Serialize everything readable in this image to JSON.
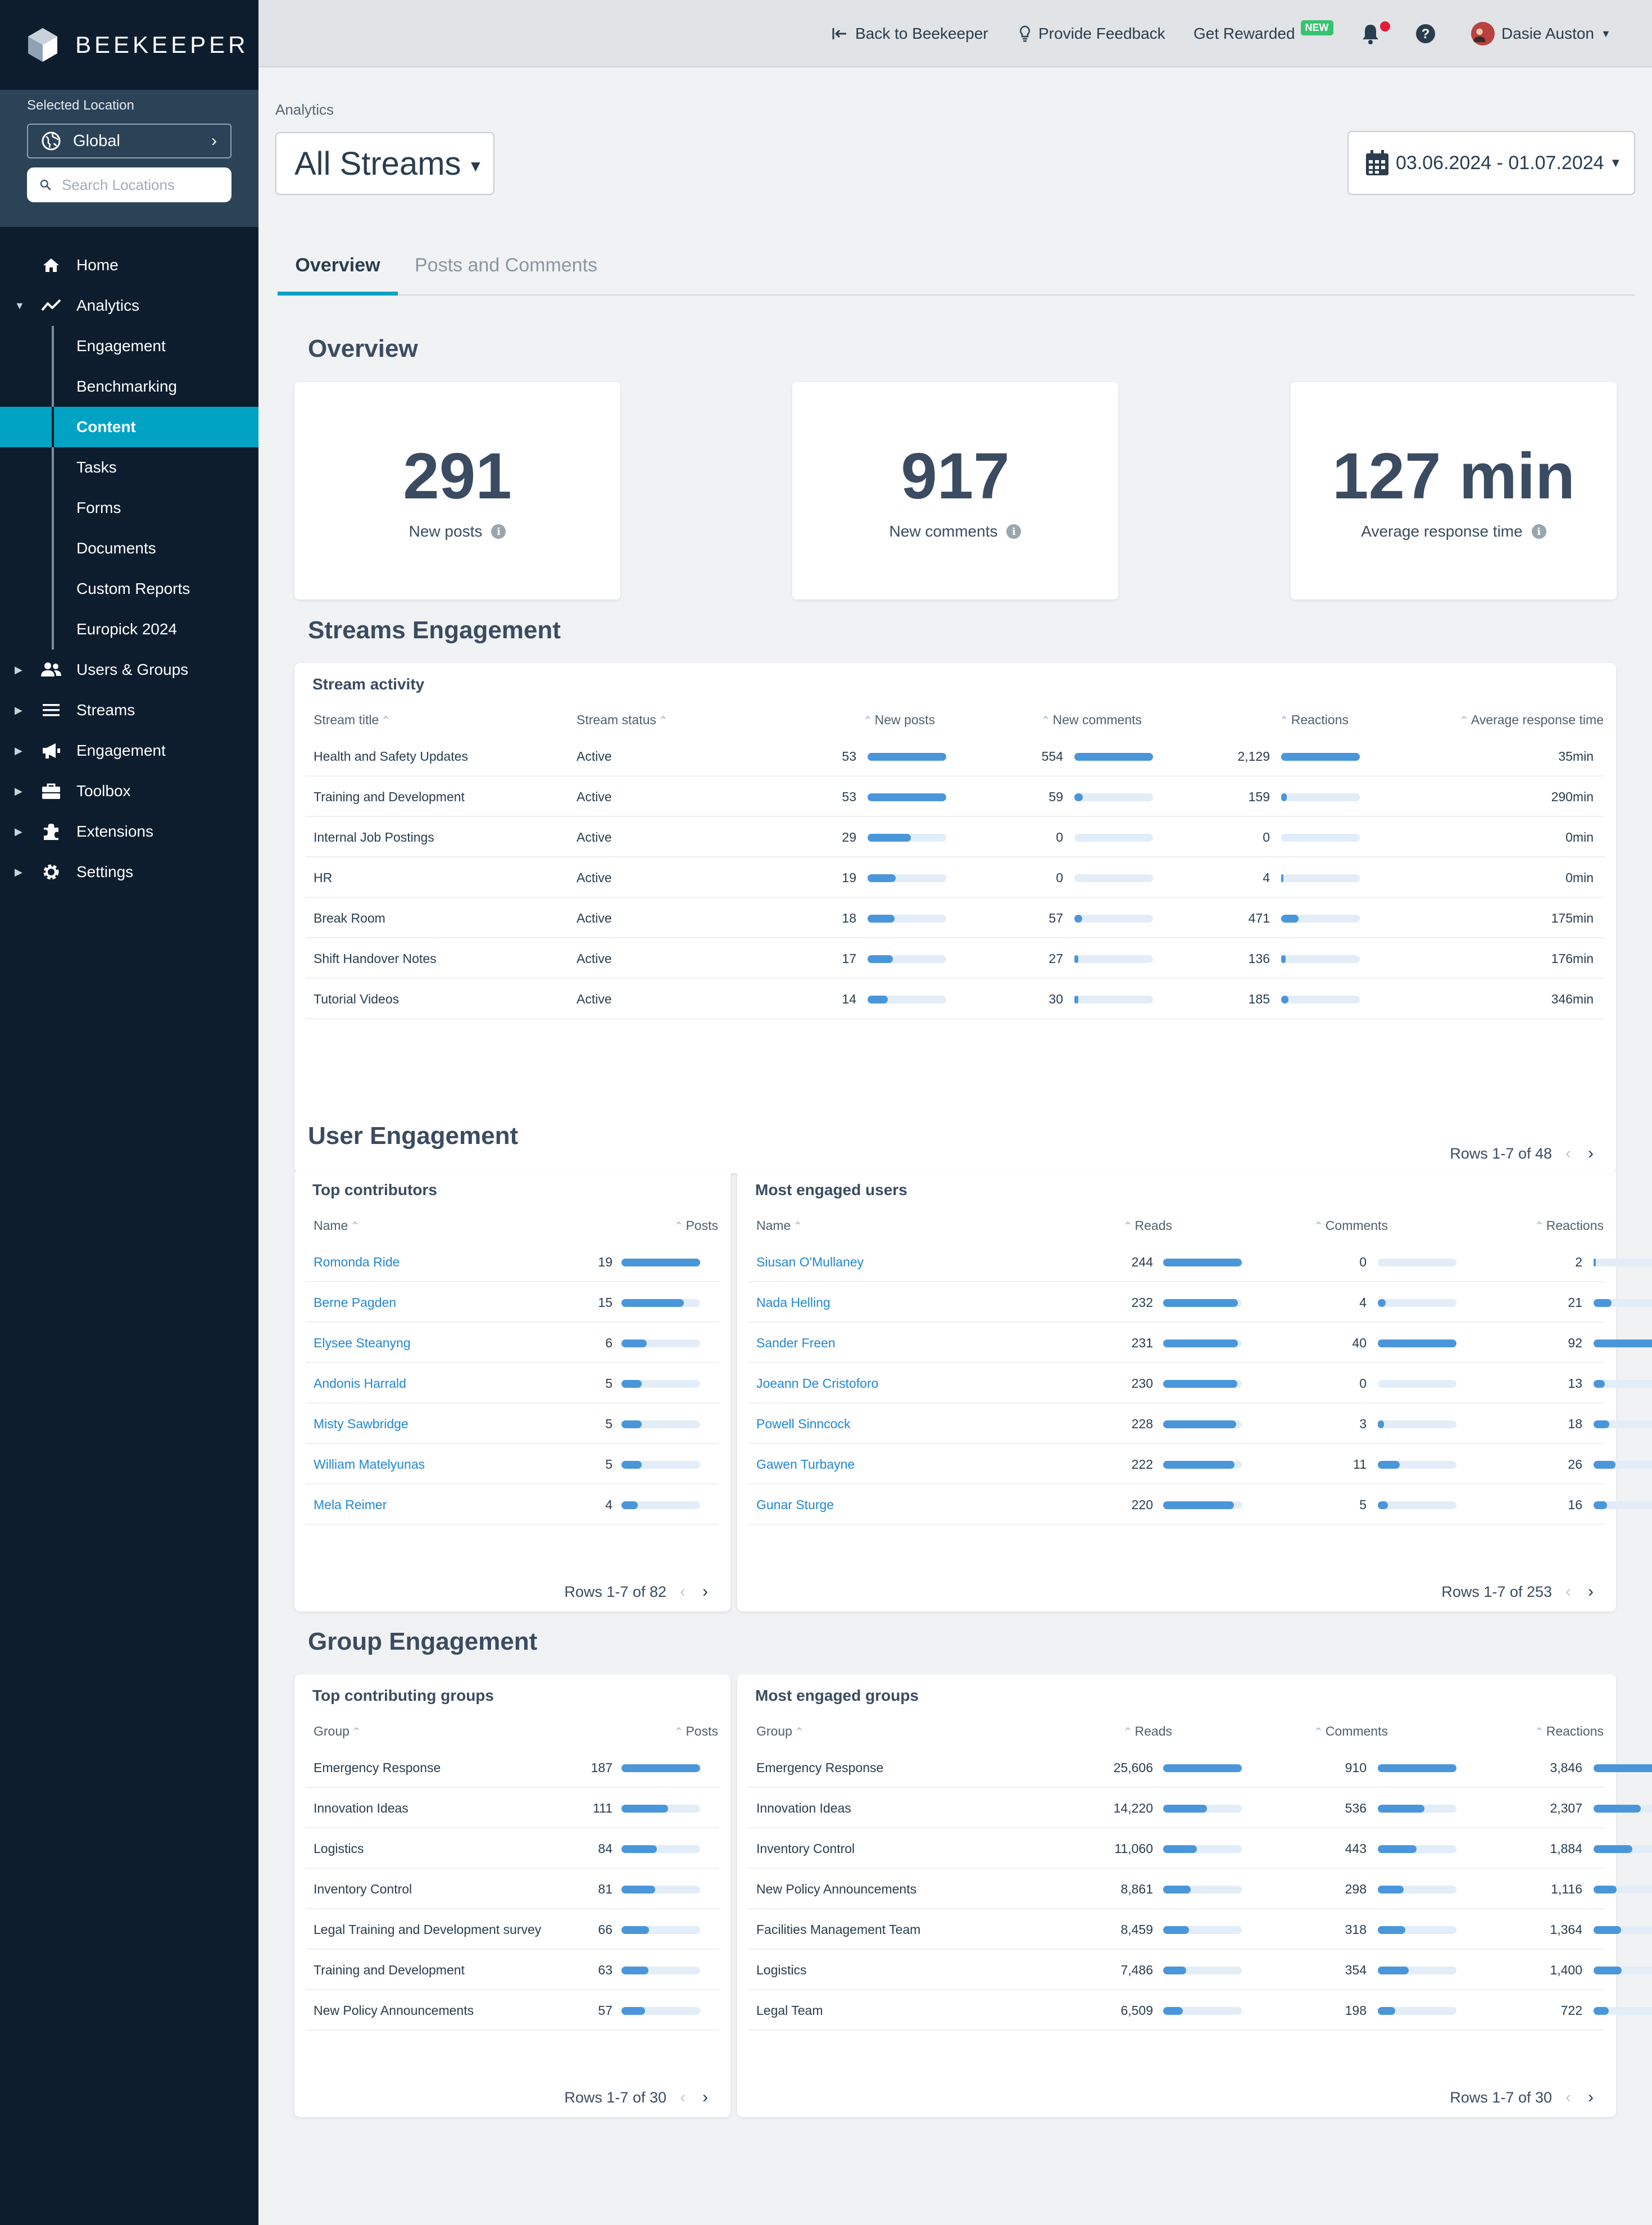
{
  "brand": {
    "name": "BEEKEEPER"
  },
  "location": {
    "label": "Selected Location",
    "value": "Global",
    "search_placeholder": "Search Locations"
  },
  "nav": {
    "home": "Home",
    "analytics": "Analytics",
    "analytics_sub": [
      "Engagement",
      "Benchmarking",
      "Content",
      "Tasks",
      "Forms",
      "Documents",
      "Custom Reports",
      "Europick 2024"
    ],
    "active_sub": "Content",
    "users_groups": "Users & Groups",
    "streams": "Streams",
    "engagement": "Engagement",
    "toolbox": "Toolbox",
    "extensions": "Extensions",
    "settings": "Settings"
  },
  "topbar": {
    "back": "Back to Beekeeper",
    "feedback": "Provide Feedback",
    "rewarded": "Get Rewarded",
    "new_badge": "NEW",
    "user": "Dasie Auston"
  },
  "header": {
    "breadcrumb": "Analytics",
    "stream_select": "All Streams",
    "date_range": "03.06.2024 - 01.07.2024"
  },
  "tabs": [
    "Overview",
    "Posts and Comments"
  ],
  "overview": {
    "title": "Overview",
    "kpis": [
      {
        "value": "291",
        "label": "New posts"
      },
      {
        "value": "917",
        "label": "New comments"
      },
      {
        "value": "127 min",
        "label": "Average response time"
      }
    ]
  },
  "streams": {
    "section_title": "Streams Engagement",
    "card_title": "Stream activity",
    "headers": [
      "Stream title",
      "Stream status",
      "New posts",
      "New comments",
      "Reactions",
      "Average response time"
    ],
    "rows": [
      {
        "title": "Health and Safety Updates",
        "status": "Active",
        "posts": "53",
        "posts_pct": 100,
        "comments": "554",
        "comments_pct": 100,
        "reactions": "2,129",
        "reactions_pct": 100,
        "time": "35min"
      },
      {
        "title": "Training and Development",
        "status": "Active",
        "posts": "53",
        "posts_pct": 100,
        "comments": "59",
        "comments_pct": 11,
        "reactions": "159",
        "reactions_pct": 7,
        "time": "290min"
      },
      {
        "title": "Internal Job Postings",
        "status": "Active",
        "posts": "29",
        "posts_pct": 55,
        "comments": "0",
        "comments_pct": 0,
        "reactions": "0",
        "reactions_pct": 0,
        "time": "0min"
      },
      {
        "title": "HR",
        "status": "Active",
        "posts": "19",
        "posts_pct": 36,
        "comments": "0",
        "comments_pct": 0,
        "reactions": "4",
        "reactions_pct": 0.2,
        "time": "0min"
      },
      {
        "title": "Break Room",
        "status": "Active",
        "posts": "18",
        "posts_pct": 34,
        "comments": "57",
        "comments_pct": 10,
        "reactions": "471",
        "reactions_pct": 22,
        "time": "175min"
      },
      {
        "title": "Shift Handover Notes",
        "status": "Active",
        "posts": "17",
        "posts_pct": 32,
        "comments": "27",
        "comments_pct": 5,
        "reactions": "136",
        "reactions_pct": 6,
        "time": "176min"
      },
      {
        "title": "Tutorial Videos",
        "status": "Active",
        "posts": "14",
        "posts_pct": 26,
        "comments": "30",
        "comments_pct": 5,
        "reactions": "185",
        "reactions_pct": 9,
        "time": "346min"
      }
    ],
    "pager": "Rows 1-7 of 48"
  },
  "users": {
    "section_title": "User Engagement",
    "contributors": {
      "title": "Top contributors",
      "headers": [
        "Name",
        "Posts"
      ],
      "rows": [
        {
          "name": "Romonda Ride",
          "posts": "19",
          "pct": 100
        },
        {
          "name": "Berne Pagden",
          "posts": "15",
          "pct": 79
        },
        {
          "name": "Elysee Steanyng",
          "posts": "6",
          "pct": 32
        },
        {
          "name": "Andonis Harrald",
          "posts": "5",
          "pct": 26
        },
        {
          "name": "Misty Sawbridge",
          "posts": "5",
          "pct": 26
        },
        {
          "name": "William Matelyunas",
          "posts": "5",
          "pct": 26
        },
        {
          "name": "Mela Reimer",
          "posts": "4",
          "pct": 21
        }
      ],
      "pager": "Rows 1-7 of 82"
    },
    "engaged": {
      "title": "Most engaged users",
      "headers": [
        "Name",
        "Reads",
        "Comments",
        "Reactions"
      ],
      "rows": [
        {
          "name": "Siusan O'Mullaney",
          "reads": "244",
          "reads_pct": 100,
          "comments": "0",
          "comments_pct": 0,
          "reactions": "2",
          "reactions_pct": 2
        },
        {
          "name": "Nada Helling",
          "reads": "232",
          "reads_pct": 95,
          "comments": "4",
          "comments_pct": 10,
          "reactions": "21",
          "reactions_pct": 23
        },
        {
          "name": "Sander Freen",
          "reads": "231",
          "reads_pct": 95,
          "comments": "40",
          "comments_pct": 100,
          "reactions": "92",
          "reactions_pct": 100
        },
        {
          "name": "Joeann De Cristoforo",
          "reads": "230",
          "reads_pct": 94,
          "comments": "0",
          "comments_pct": 0,
          "reactions": "13",
          "reactions_pct": 14
        },
        {
          "name": "Powell Sinncock",
          "reads": "228",
          "reads_pct": 93,
          "comments": "3",
          "comments_pct": 8,
          "reactions": "18",
          "reactions_pct": 20
        },
        {
          "name": "Gawen Turbayne",
          "reads": "222",
          "reads_pct": 91,
          "comments": "11",
          "comments_pct": 28,
          "reactions": "26",
          "reactions_pct": 28
        },
        {
          "name": "Gunar Sturge",
          "reads": "220",
          "reads_pct": 90,
          "comments": "5",
          "comments_pct": 13,
          "reactions": "16",
          "reactions_pct": 17
        }
      ],
      "pager": "Rows 1-7 of 253"
    }
  },
  "groups": {
    "section_title": "Group Engagement",
    "contributing": {
      "title": "Top contributing groups",
      "headers": [
        "Group",
        "Posts"
      ],
      "rows": [
        {
          "name": "Emergency Response",
          "posts": "187",
          "pct": 100
        },
        {
          "name": "Innovation Ideas",
          "posts": "111",
          "pct": 59
        },
        {
          "name": "Logistics",
          "posts": "84",
          "pct": 45
        },
        {
          "name": "Inventory Control",
          "posts": "81",
          "pct": 43
        },
        {
          "name": "Legal Training and Development survey",
          "posts": "66",
          "pct": 35
        },
        {
          "name": "Training and Development",
          "posts": "63",
          "pct": 34
        },
        {
          "name": "New Policy Announcements",
          "posts": "57",
          "pct": 30
        }
      ],
      "pager": "Rows 1-7 of 30"
    },
    "engaged": {
      "title": "Most engaged groups",
      "headers": [
        "Group",
        "Reads",
        "Comments",
        "Reactions"
      ],
      "rows": [
        {
          "name": "Emergency Response",
          "reads": "25,606",
          "reads_pct": 100,
          "comments": "910",
          "comments_pct": 100,
          "reactions": "3,846",
          "reactions_pct": 100
        },
        {
          "name": "Innovation Ideas",
          "reads": "14,220",
          "reads_pct": 56,
          "comments": "536",
          "comments_pct": 59,
          "reactions": "2,307",
          "reactions_pct": 60
        },
        {
          "name": "Inventory Control",
          "reads": "11,060",
          "reads_pct": 43,
          "comments": "443",
          "comments_pct": 49,
          "reactions": "1,884",
          "reactions_pct": 49
        },
        {
          "name": "New Policy Announcements",
          "reads": "8,861",
          "reads_pct": 35,
          "comments": "298",
          "comments_pct": 33,
          "reactions": "1,116",
          "reactions_pct": 29
        },
        {
          "name": "Facilities Management Team",
          "reads": "8,459",
          "reads_pct": 33,
          "comments": "318",
          "comments_pct": 35,
          "reactions": "1,364",
          "reactions_pct": 35
        },
        {
          "name": "Logistics",
          "reads": "7,486",
          "reads_pct": 29,
          "comments": "354",
          "comments_pct": 39,
          "reactions": "1,400",
          "reactions_pct": 36
        },
        {
          "name": "Legal Team",
          "reads": "6,509",
          "reads_pct": 25,
          "comments": "198",
          "comments_pct": 22,
          "reactions": "722",
          "reactions_pct": 19
        }
      ],
      "pager": "Rows 1-7 of 30"
    }
  },
  "colors": {
    "accent": "#00a3c4",
    "sidebar": "#0d1d2e",
    "bar": "#4a96db",
    "bar_track": "#e2edf8",
    "link": "#2187d3"
  }
}
